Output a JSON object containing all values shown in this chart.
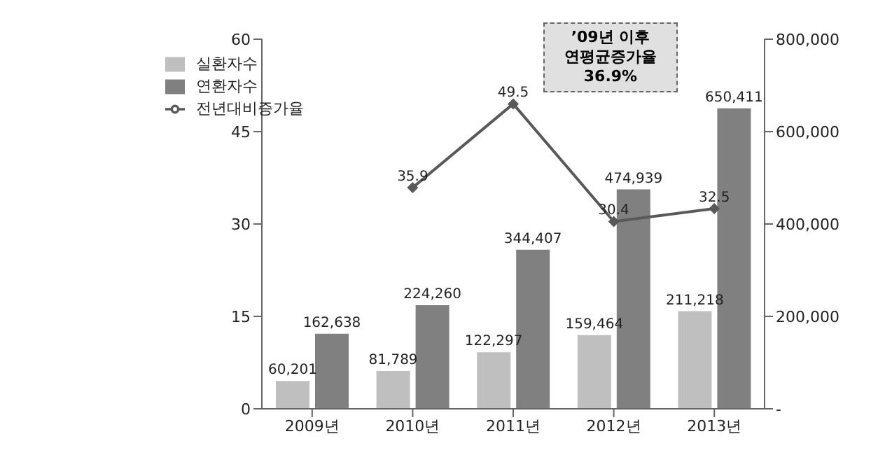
{
  "chart_data": {
    "type": "bar",
    "categories": [
      "2009년",
      "2010년",
      "2011년",
      "2012년",
      "2013년"
    ],
    "series": [
      {
        "name": "실환자수",
        "axis": "y2",
        "color": "#bfbfbf",
        "values": [
          60201,
          81789,
          122297,
          159464,
          211218
        ],
        "value_labels": [
          "60,201",
          "81,789",
          "122,297",
          "159,464",
          "211,218"
        ]
      },
      {
        "name": "연환자수",
        "axis": "y2",
        "color": "#808080",
        "values": [
          162638,
          224260,
          344407,
          474939,
          650411
        ],
        "value_labels": [
          "162,638",
          "224,260",
          "344,407",
          "474,939",
          "650,411"
        ]
      },
      {
        "name": "전년대비증가율",
        "type": "line",
        "color": "#595959",
        "marker": "diamond",
        "values": [
          null,
          35.9,
          49.5,
          30.4,
          32.5
        ],
        "value_labels": [
          null,
          "35.9",
          "49.5",
          "30.4",
          "32.5"
        ]
      }
    ],
    "ylim": [
      0,
      60
    ],
    "yticks": [
      0,
      15,
      30,
      45,
      60
    ],
    "y2lim": [
      0,
      800000
    ],
    "y2ticks": [
      {
        "value": 0,
        "label": "-"
      },
      {
        "value": 200000,
        "label": "200,000"
      },
      {
        "value": 400000,
        "label": "400,000"
      },
      {
        "value": 600000,
        "label": "600,000"
      },
      {
        "value": 800000,
        "label": "800,000"
      }
    ],
    "annotations": [
      "’09년 이후\n연평균증가율\n36.9%"
    ],
    "legend": "top left",
    "grid": false
  }
}
